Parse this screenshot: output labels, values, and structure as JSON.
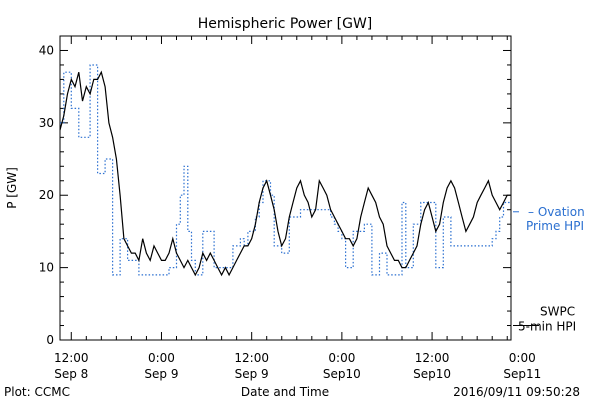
{
  "chart_data": {
    "type": "line",
    "title": "Hemispheric Power [GW]",
    "xlabel": "Date and Time",
    "ylabel": "P [GW]",
    "ylim": [
      0,
      42
    ],
    "xlim_hours": [
      -1.5,
      58.5
    ],
    "yticks": [
      0,
      10,
      20,
      30,
      40
    ],
    "xticks": [
      {
        "t": 0,
        "line1": "12:00",
        "line2": "Sep 8"
      },
      {
        "t": 12,
        "line1": "0:00",
        "line2": "Sep 9"
      },
      {
        "t": 24,
        "line1": "12:00",
        "line2": "Sep 9"
      },
      {
        "t": 36,
        "line1": "0:00",
        "line2": "Sep10"
      },
      {
        "t": 48,
        "line1": "12:00",
        "line2": "Sep10"
      },
      {
        "t": 60,
        "line1": "0:00",
        "line2": "Sep11"
      }
    ],
    "minor_tick_step_hours": 2,
    "series": [
      {
        "name": "SWPC 5-min HPI",
        "color": "#000000",
        "style": "solid",
        "x": [
          -1.5,
          -1,
          -0.5,
          0,
          0.5,
          1,
          1.5,
          2,
          2.5,
          3,
          3.5,
          4,
          4.5,
          5,
          5.5,
          6,
          6.5,
          7,
          7.5,
          8,
          8.5,
          9,
          9.5,
          10,
          10.5,
          11,
          11.5,
          12,
          12.5,
          13,
          13.5,
          14,
          14.5,
          15,
          15.5,
          16,
          16.5,
          17,
          17.5,
          18,
          18.5,
          19,
          19.5,
          20,
          20.5,
          21,
          21.5,
          22,
          22.5,
          23,
          23.5,
          24,
          24.5,
          25,
          25.5,
          26,
          26.5,
          27,
          27.5,
          28,
          28.5,
          29,
          29.5,
          30,
          30.5,
          31,
          31.5,
          32,
          32.5,
          33,
          33.5,
          34,
          34.5,
          35,
          35.5,
          36,
          36.5,
          37,
          37.5,
          38,
          38.5,
          39,
          39.5,
          40,
          40.5,
          41,
          41.5,
          42,
          42.5,
          43,
          43.5,
          44,
          44.5,
          45,
          45.5,
          46,
          46.5,
          47,
          47.5,
          48,
          48.5,
          49,
          49.5,
          50,
          50.5,
          51,
          51.5,
          52,
          52.5,
          53,
          53.5,
          54,
          54.5,
          55,
          55.5,
          56,
          56.5,
          57,
          57.5,
          58,
          58.5
        ],
        "y": [
          29,
          31,
          34,
          36,
          35,
          37,
          33,
          35,
          34,
          36,
          36,
          37,
          35,
          30,
          28,
          25,
          20,
          14,
          13,
          12,
          12,
          11,
          14,
          12,
          11,
          13,
          12,
          11,
          11,
          12,
          14,
          12,
          11,
          10,
          11,
          10,
          9,
          10,
          12,
          11,
          12,
          11,
          10,
          9,
          10,
          9,
          10,
          11,
          12,
          13,
          13,
          14,
          16,
          19,
          21,
          22,
          20,
          18,
          15,
          13,
          14,
          17,
          19,
          21,
          22,
          20,
          19,
          17,
          18,
          22,
          21,
          20,
          18,
          17,
          16,
          15,
          14,
          14,
          13,
          14,
          17,
          19,
          21,
          20,
          19,
          17,
          16,
          13,
          12,
          11,
          11,
          10,
          10,
          11,
          12,
          13,
          16,
          18,
          19,
          17,
          15,
          16,
          19,
          21,
          22,
          21,
          19,
          17,
          15,
          16,
          17,
          19,
          20,
          21,
          22,
          20,
          19,
          18,
          19,
          20,
          20
        ]
      },
      {
        "name": "Ovation Prime HPI",
        "color": "#2a6fd0",
        "style": "dotted",
        "x": [
          -1.5,
          -1,
          -0.5,
          0,
          0.5,
          1,
          1.5,
          2,
          2.5,
          3,
          3.5,
          4,
          4.5,
          5,
          5.5,
          6,
          6.5,
          7,
          7.5,
          8,
          8.5,
          9,
          9.5,
          10,
          10.5,
          11,
          11.5,
          12,
          12.5,
          13,
          13.5,
          14,
          14.5,
          15,
          15.5,
          16,
          16.5,
          17,
          17.5,
          18,
          18.5,
          19,
          19.5,
          20,
          20.5,
          21,
          21.5,
          22,
          22.5,
          23,
          23.5,
          24,
          24.5,
          25,
          25.5,
          26,
          26.5,
          27,
          27.5,
          28,
          28.5,
          29,
          29.5,
          30,
          30.5,
          31,
          31.5,
          32,
          32.5,
          33,
          33.5,
          34,
          34.5,
          35,
          35.5,
          36,
          36.5,
          37,
          37.5,
          38,
          38.5,
          39,
          39.5,
          40,
          40.5,
          41,
          41.5,
          42,
          42.5,
          43,
          43.5,
          44,
          44.5,
          45,
          45.5,
          46,
          46.5,
          47,
          47.5,
          48,
          48.5,
          49,
          49.5,
          50,
          50.5,
          51,
          51.5,
          52,
          52.5,
          53,
          53.5,
          54,
          54.5,
          55,
          55.5,
          56,
          56.5,
          57,
          57.5,
          58,
          58.5
        ],
        "y": [
          30,
          37,
          37,
          32,
          32,
          28,
          28,
          28,
          38,
          38,
          23,
          23,
          25,
          25,
          9,
          9,
          14,
          14,
          11,
          11,
          11,
          9,
          9,
          9,
          9,
          9,
          9,
          9,
          9,
          10,
          10,
          16,
          20,
          24,
          15,
          11,
          9,
          9,
          15,
          15,
          15,
          10,
          10,
          10,
          10,
          10,
          13,
          13,
          14,
          13,
          15,
          15,
          17,
          19,
          22,
          22,
          20,
          13,
          13,
          12,
          12,
          17,
          17,
          17,
          18,
          18,
          18,
          18,
          18,
          18,
          18,
          18,
          17,
          16,
          15,
          14,
          10,
          10,
          15,
          15,
          15,
          16,
          16,
          9,
          9,
          12,
          12,
          9,
          9,
          9,
          9,
          19,
          10,
          10,
          16,
          16,
          19,
          19,
          19,
          19,
          10,
          10,
          17,
          17,
          13,
          13,
          13,
          13,
          13,
          13,
          13,
          13,
          13,
          13,
          13,
          14,
          15,
          17,
          19,
          19,
          19
        ]
      }
    ],
    "legend": [
      {
        "level_gw": 2.0,
        "lines": [
          "SWPC",
          "5-min HPI"
        ],
        "color": "#000000",
        "marker": "—"
      },
      {
        "level_gw": 17.3,
        "lines": [
          "– Ovation",
          "Prime HPI"
        ],
        "color": "#2a6fd0",
        "marker": "–"
      }
    ],
    "legend_position": "right",
    "grid": false
  },
  "footer": {
    "left": "Plot: CCMC",
    "right": "2016/09/11 09:50:28"
  }
}
